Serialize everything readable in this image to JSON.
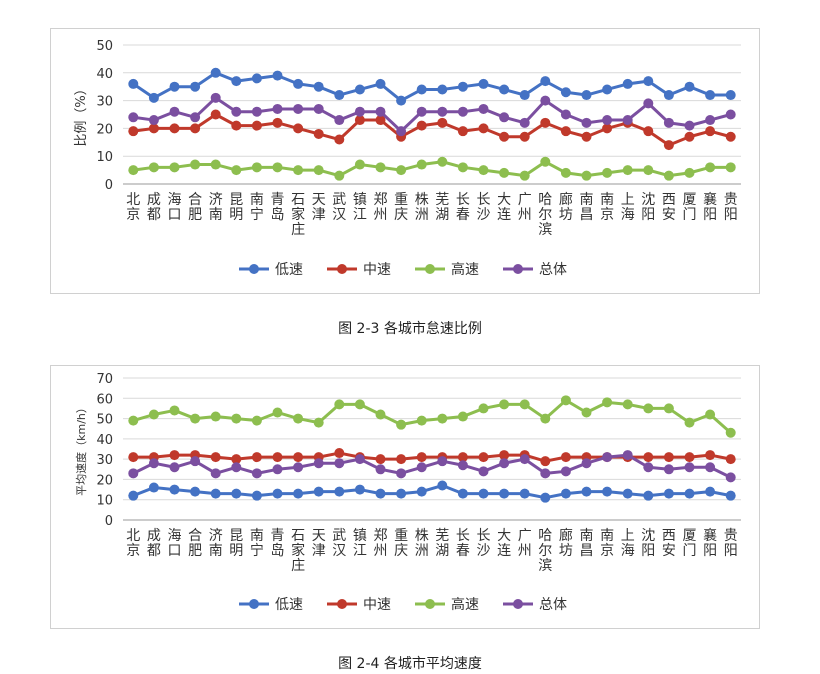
{
  "chart_data": [
    {
      "type": "line",
      "caption": "图 2-3 各城市怠速比例",
      "ylabel": "比例（%）",
      "ylim": [
        0,
        50
      ],
      "yticks": [
        0,
        10,
        20,
        30,
        40,
        50
      ],
      "grid": true,
      "legend": "bottom",
      "categories": [
        "北京",
        "成都",
        "海口",
        "合肥",
        "济南",
        "昆明",
        "南宁",
        "青岛",
        "石家庄",
        "天津",
        "武汉",
        "镇江",
        "郑州",
        "重庆",
        "株洲",
        "芜湖",
        "长春",
        "长沙",
        "大连",
        "广州",
        "哈尔滨",
        "廊坊",
        "南昌",
        "南京",
        "上海",
        "沈阳",
        "西安",
        "厦门",
        "襄阳",
        "贵阳"
      ],
      "series": [
        {
          "name": "低速",
          "color": "#4472C4",
          "values": [
            36,
            31,
            35,
            35,
            40,
            37,
            38,
            39,
            36,
            35,
            32,
            34,
            36,
            30,
            34,
            34,
            35,
            36,
            34,
            32,
            37,
            33,
            32,
            34,
            36,
            37,
            32,
            35,
            32,
            32
          ]
        },
        {
          "name": "中速",
          "color": "#C0392B",
          "values": [
            19,
            20,
            20,
            20,
            25,
            21,
            21,
            22,
            20,
            18,
            16,
            23,
            23,
            17,
            21,
            22,
            19,
            20,
            17,
            17,
            22,
            19,
            17,
            20,
            22,
            19,
            14,
            17,
            19,
            17
          ]
        },
        {
          "name": "高速",
          "color": "#8DBE4F",
          "values": [
            5,
            6,
            6,
            7,
            7,
            5,
            6,
            6,
            5,
            5,
            3,
            7,
            6,
            5,
            7,
            8,
            6,
            5,
            4,
            3,
            8,
            4,
            3,
            4,
            5,
            5,
            3,
            4,
            6,
            6
          ]
        },
        {
          "name": "总体",
          "color": "#7B4FA0",
          "values": [
            24,
            23,
            26,
            24,
            31,
            26,
            26,
            27,
            27,
            27,
            23,
            26,
            26,
            19,
            26,
            26,
            26,
            27,
            24,
            22,
            30,
            25,
            22,
            23,
            23,
            29,
            22,
            21,
            23,
            25
          ]
        }
      ]
    },
    {
      "type": "line",
      "caption": "图 2-4 各城市平均速度",
      "ylabel": "平均速度（km/h）",
      "ylim": [
        0,
        70
      ],
      "yticks": [
        0,
        10,
        20,
        30,
        40,
        50,
        60,
        70
      ],
      "grid": true,
      "legend": "bottom",
      "categories": [
        "北京",
        "成都",
        "海口",
        "合肥",
        "济南",
        "昆明",
        "南宁",
        "青岛",
        "石家庄",
        "天津",
        "武汉",
        "镇江",
        "郑州",
        "重庆",
        "株洲",
        "芜湖",
        "长春",
        "长沙",
        "大连",
        "广州",
        "哈尔滨",
        "廊坊",
        "南昌",
        "南京",
        "上海",
        "沈阳",
        "西安",
        "厦门",
        "襄阳",
        "贵阳"
      ],
      "series": [
        {
          "name": "低速",
          "color": "#4472C4",
          "values": [
            12,
            16,
            15,
            14,
            13,
            13,
            12,
            13,
            13,
            14,
            14,
            15,
            13,
            13,
            14,
            17,
            13,
            13,
            13,
            13,
            11,
            13,
            14,
            14,
            13,
            12,
            13,
            13,
            14,
            12
          ]
        },
        {
          "name": "中速",
          "color": "#C0392B",
          "values": [
            31,
            31,
            32,
            32,
            31,
            30,
            31,
            31,
            31,
            31,
            33,
            31,
            30,
            30,
            31,
            31,
            31,
            31,
            32,
            32,
            29,
            31,
            31,
            31,
            31,
            31,
            31,
            31,
            32,
            30
          ]
        },
        {
          "name": "高速",
          "color": "#8DBE4F",
          "values": [
            49,
            52,
            54,
            50,
            51,
            50,
            49,
            53,
            50,
            48,
            57,
            57,
            52,
            47,
            49,
            50,
            51,
            55,
            57,
            57,
            50,
            59,
            53,
            58,
            57,
            55,
            55,
            48,
            52,
            43
          ]
        },
        {
          "name": "总体",
          "color": "#7B4FA0",
          "values": [
            23,
            28,
            26,
            29,
            23,
            26,
            23,
            25,
            26,
            28,
            28,
            30,
            25,
            23,
            26,
            29,
            27,
            24,
            28,
            30,
            23,
            24,
            28,
            31,
            32,
            26,
            25,
            26,
            26,
            21
          ]
        }
      ]
    }
  ]
}
